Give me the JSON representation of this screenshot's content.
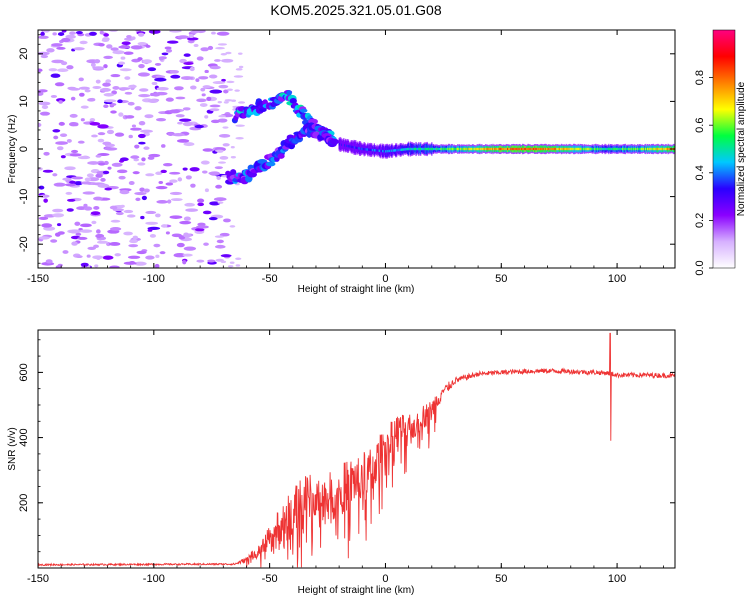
{
  "chart_data": [
    {
      "type": "heatmap",
      "title": "KOM5.2025.321.05.01.G08",
      "xlabel": "Height of straight line (km)",
      "ylabel": "Frequency (Hz)",
      "xlim": [
        -150,
        125
      ],
      "ylim": [
        -25,
        25
      ],
      "xticks": [
        -150,
        -100,
        -50,
        0,
        50,
        100
      ],
      "yticks": [
        -20,
        -10,
        0,
        10,
        20
      ],
      "colorbar": {
        "label": "Normalized spectral amplitude",
        "range": [
          0,
          1
        ],
        "ticks": [
          0.0,
          0.2,
          0.4,
          0.6,
          0.8
        ],
        "colors": [
          "#ffffff",
          "#d6b0ff",
          "#8a00ff",
          "#2a00ff",
          "#00c8ff",
          "#00ff40",
          "#ffff00",
          "#ff8000",
          "#ff0000",
          "#ff0080"
        ]
      },
      "features": [
        {
          "name": "scattered-noise",
          "x_range": [
            -150,
            -68
          ],
          "y_range": [
            -25,
            25
          ],
          "amplitude": 0.15
        },
        {
          "name": "upper-branch",
          "points": [
            [
              -65,
              7
            ],
            [
              -60,
              8
            ],
            [
              -48,
              10
            ],
            [
              -42,
              11
            ],
            [
              -35,
              7
            ],
            [
              -30,
              4
            ],
            [
              -22,
              2
            ]
          ],
          "amplitude": 0.35
        },
        {
          "name": "lower-branch",
          "points": [
            [
              -68,
              -6
            ],
            [
              -62,
              -6
            ],
            [
              -55,
              -4
            ],
            [
              -48,
              -2
            ],
            [
              -40,
              2
            ],
            [
              -32,
              4
            ],
            [
              -22,
              2
            ]
          ],
          "amplitude": 0.3
        },
        {
          "name": "main-line",
          "points": [
            [
              -20,
              1
            ],
            [
              -10,
              0
            ],
            [
              0,
              -0.5
            ],
            [
              10,
              0
            ],
            [
              20,
              0
            ],
            [
              125,
              0
            ]
          ],
          "amplitude_profile": [
            [
              -20,
              0.3
            ],
            [
              0,
              0.4
            ],
            [
              20,
              0.5
            ],
            [
              40,
              0.7
            ],
            [
              60,
              0.85
            ],
            [
              80,
              0.7
            ],
            [
              95,
              0.5
            ],
            [
              110,
              0.6
            ],
            [
              125,
              0.75
            ]
          ]
        }
      ]
    },
    {
      "type": "line",
      "title": "",
      "xlabel": "Height of straight line (km)",
      "ylabel": "SNR (v/v)",
      "xlim": [
        -150,
        125
      ],
      "ylim": [
        0,
        730
      ],
      "xticks": [
        -150,
        -100,
        -50,
        0,
        50,
        100
      ],
      "yticks": [
        200,
        400,
        600
      ],
      "color": "#ee3333",
      "series": [
        {
          "name": "SNR",
          "envelope": [
            [
              -150,
              10
            ],
            [
              -65,
              12
            ],
            [
              -55,
              40
            ],
            [
              -45,
              110
            ],
            [
              -35,
              180
            ],
            [
              -25,
              180
            ],
            [
              -15,
              230
            ],
            [
              -5,
              280
            ],
            [
              0,
              360
            ],
            [
              5,
              400
            ],
            [
              10,
              400
            ],
            [
              15,
              440
            ],
            [
              20,
              470
            ],
            [
              25,
              540
            ],
            [
              30,
              575
            ],
            [
              40,
              595
            ],
            [
              50,
              600
            ],
            [
              60,
              603
            ],
            [
              70,
              605
            ],
            [
              80,
              603
            ],
            [
              90,
              600
            ],
            [
              96,
              598
            ],
            [
              100,
              592
            ],
            [
              110,
              592
            ],
            [
              125,
              590
            ]
          ],
          "noise_amplitude": [
            [
              -150,
              5
            ],
            [
              -65,
              5
            ],
            [
              -55,
              30
            ],
            [
              -45,
              100
            ],
            [
              -35,
              130
            ],
            [
              -25,
              130
            ],
            [
              -15,
              130
            ],
            [
              -5,
              110
            ],
            [
              5,
              90
            ],
            [
              15,
              70
            ],
            [
              25,
              40
            ],
            [
              30,
              20
            ],
            [
              40,
              15
            ],
            [
              125,
              15
            ]
          ],
          "spikes": [
            [
              97,
              720
            ],
            [
              97.3,
              390
            ]
          ]
        }
      ]
    }
  ]
}
